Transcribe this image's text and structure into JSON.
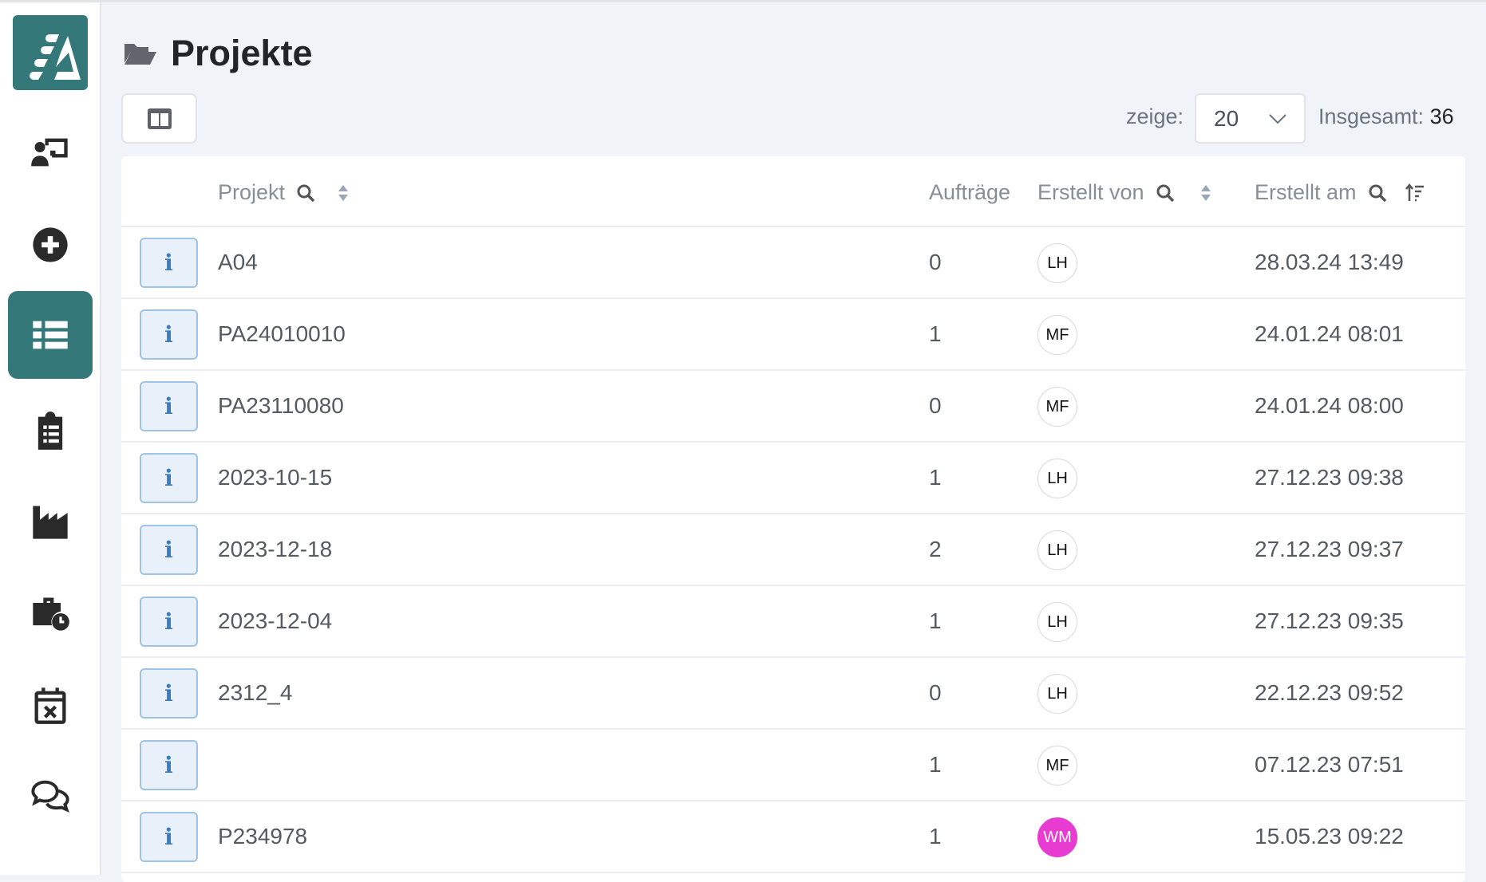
{
  "page": {
    "title": "Projekte"
  },
  "toolbar": {
    "show_label": "zeige:",
    "page_size": "20",
    "total_label": "Insgesamt:",
    "total": "36"
  },
  "colors": {
    "accent": "#34787a",
    "info": "#3a7cc0",
    "avatar_wm": "#e83bd1"
  },
  "sidebar": {
    "items": [
      {
        "icon": "user-presentation-icon"
      },
      {
        "icon": "plus-circle-icon"
      },
      {
        "icon": "list-icon",
        "active": true
      },
      {
        "icon": "clipboard-list-icon"
      },
      {
        "icon": "industry-icon"
      },
      {
        "icon": "business-time-icon"
      },
      {
        "icon": "calendar-x-icon"
      },
      {
        "icon": "comments-icon"
      }
    ]
  },
  "table": {
    "headers": {
      "project": "Projekt",
      "orders": "Aufträge",
      "created_by": "Erstellt von",
      "created_at": "Erstellt am"
    },
    "rows": [
      {
        "project": "A04",
        "orders": "0",
        "by": "LH",
        "at": "28.03.24 13:49"
      },
      {
        "project": "PA24010010",
        "orders": "1",
        "by": "MF",
        "at": "24.01.24 08:01"
      },
      {
        "project": "PA23110080",
        "orders": "0",
        "by": "MF",
        "at": "24.01.24 08:00"
      },
      {
        "project": "2023-10-15",
        "orders": "1",
        "by": "LH",
        "at": "27.12.23 09:38"
      },
      {
        "project": "2023-12-18",
        "orders": "2",
        "by": "LH",
        "at": "27.12.23 09:37"
      },
      {
        "project": "2023-12-04",
        "orders": "1",
        "by": "LH",
        "at": "27.12.23 09:35"
      },
      {
        "project": "2312_4",
        "orders": "0",
        "by": "LH",
        "at": "22.12.23 09:52"
      },
      {
        "project": "",
        "orders": "1",
        "by": "MF",
        "at": "07.12.23 07:51"
      },
      {
        "project": "P234978",
        "orders": "1",
        "by": "WM",
        "at": "15.05.23 09:22"
      }
    ]
  }
}
